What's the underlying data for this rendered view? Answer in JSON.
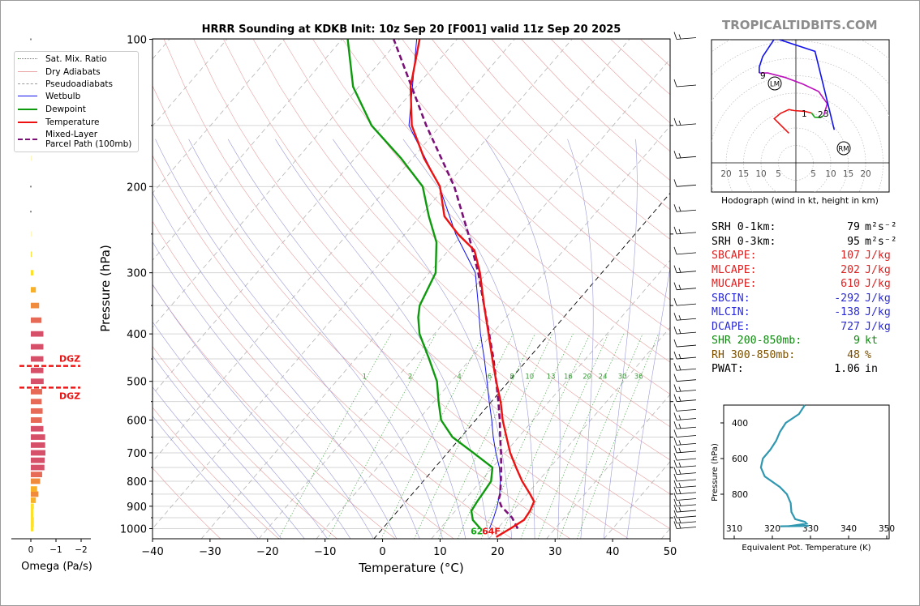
{
  "brand": "TROPICALTIDBITS.COM",
  "chart_data": {
    "type": "skew-t",
    "title": "HRRR Sounding at KDKB Init: 10z Sep 20 [F001] valid 11z Sep 20 2025",
    "xlabel": "Temperature (°C)",
    "ylabel": "Pressure (hPa)",
    "xlim": [
      -40,
      50
    ],
    "x_ticks": [
      -40,
      -30,
      -20,
      -10,
      0,
      10,
      20,
      30,
      40,
      50
    ],
    "x_tick_labels": [
      "−40",
      "−30",
      "−20",
      "−10",
      "0",
      "10",
      "20",
      "30",
      "40",
      "50"
    ],
    "p_ticks": [
      100,
      200,
      300,
      400,
      500,
      600,
      700,
      800,
      900,
      1000
    ],
    "temperature": [
      [
        1040,
        21
      ],
      [
        1000,
        22.2
      ],
      [
        960,
        23.3
      ],
      [
        920,
        23
      ],
      [
        880,
        22.3
      ],
      [
        850,
        20.5
      ],
      [
        800,
        17.2
      ],
      [
        750,
        14.1
      ],
      [
        700,
        10.9
      ],
      [
        650,
        7.9
      ],
      [
        600,
        4.7
      ],
      [
        550,
        1.6
      ],
      [
        500,
        -2.2
      ],
      [
        450,
        -6.2
      ],
      [
        400,
        -10.6
      ],
      [
        350,
        -15.6
      ],
      [
        300,
        -21.2
      ],
      [
        270,
        -25.5
      ],
      [
        250,
        -30.8
      ],
      [
        230,
        -35.8
      ],
      [
        200,
        -41
      ],
      [
        175,
        -48
      ],
      [
        150,
        -55
      ],
      [
        125,
        -61
      ],
      [
        100,
        -66.5
      ]
    ],
    "dewpoint": [
      [
        1000,
        17
      ],
      [
        960,
        14.4
      ],
      [
        920,
        12.8
      ],
      [
        880,
        12.4
      ],
      [
        850,
        12.2
      ],
      [
        800,
        11.8
      ],
      [
        750,
        10
      ],
      [
        700,
        4.5
      ],
      [
        650,
        -1.5
      ],
      [
        600,
        -6
      ],
      [
        550,
        -9.2
      ],
      [
        500,
        -12.5
      ],
      [
        450,
        -17.2
      ],
      [
        400,
        -22.6
      ],
      [
        370,
        -25.3
      ],
      [
        350,
        -26.8
      ],
      [
        300,
        -28.9
      ],
      [
        260,
        -33.3
      ],
      [
        230,
        -38.5
      ],
      [
        200,
        -44
      ],
      [
        175,
        -52
      ],
      [
        150,
        -62
      ],
      [
        125,
        -71
      ],
      [
        100,
        -79
      ]
    ],
    "wetbulb": [
      [
        1000,
        18.6
      ],
      [
        950,
        17.7
      ],
      [
        900,
        16.6
      ],
      [
        850,
        15.2
      ],
      [
        800,
        13.4
      ],
      [
        750,
        11.2
      ],
      [
        700,
        8.4
      ],
      [
        650,
        5.6
      ],
      [
        600,
        2.8
      ],
      [
        550,
        -0.4
      ],
      [
        500,
        -3.8
      ],
      [
        450,
        -7.6
      ],
      [
        400,
        -12
      ],
      [
        350,
        -16.6
      ],
      [
        300,
        -22
      ],
      [
        250,
        -31.2
      ],
      [
        200,
        -41.1
      ],
      [
        150,
        -55.5
      ],
      [
        100,
        -67
      ]
    ],
    "parcel_path": [
      [
        1000,
        23.5
      ],
      [
        950,
        20.9
      ],
      [
        900,
        17.3
      ],
      [
        870,
        15.8
      ],
      [
        850,
        15.3
      ],
      [
        800,
        13.5
      ],
      [
        750,
        11.5
      ],
      [
        700,
        9.3
      ],
      [
        650,
        6.8
      ],
      [
        600,
        4.2
      ],
      [
        550,
        1.2
      ],
      [
        500,
        -2.2
      ],
      [
        450,
        -6
      ],
      [
        400,
        -10.5
      ],
      [
        350,
        -15.6
      ],
      [
        300,
        -21.5
      ],
      [
        250,
        -29
      ],
      [
        200,
        -38.5
      ],
      [
        150,
        -52.5
      ],
      [
        100,
        -71
      ]
    ],
    "surface_labels": {
      "dewpoint": "62",
      "temperature": "64F"
    },
    "mixing_ratio_labels": [
      "1",
      "2",
      "4",
      "6",
      "8",
      "10",
      "13",
      "16",
      "20",
      "24",
      "30",
      "36"
    ],
    "legend": [
      "Sat. Mix. Ratio",
      "Dry Adiabats",
      "Pseudoadiabats",
      "Wetbulb",
      "Dewpoint",
      "Temperature",
      "Mixed-Layer\nParcel Path (100mb)"
    ],
    "omega": {
      "xlabel": "Omega (Pa/s)",
      "x_tick_labels": [
        "0",
        "−1",
        "−2"
      ],
      "dgz_label": "DGZ",
      "dgz_top_hpa": 465,
      "dgz_bottom_hpa": 515,
      "values": [
        [
          1000,
          -0.1
        ],
        [
          980,
          -0.12
        ],
        [
          960,
          -0.12
        ],
        [
          940,
          -0.1
        ],
        [
          920,
          -0.1
        ],
        [
          900,
          -0.12
        ],
        [
          875,
          -0.2
        ],
        [
          850,
          -0.3
        ],
        [
          830,
          -0.25
        ],
        [
          800,
          -0.37
        ],
        [
          775,
          -0.45
        ],
        [
          750,
          -0.54
        ],
        [
          725,
          -0.55
        ],
        [
          700,
          -0.58
        ],
        [
          675,
          -0.57
        ],
        [
          650,
          -0.57
        ],
        [
          625,
          -0.5
        ],
        [
          600,
          -0.44
        ],
        [
          575,
          -0.47
        ],
        [
          550,
          -0.43
        ],
        [
          525,
          -0.45
        ],
        [
          500,
          -0.51
        ],
        [
          475,
          -0.5
        ],
        [
          450,
          -0.5
        ],
        [
          425,
          -0.5
        ],
        [
          400,
          -0.5
        ],
        [
          375,
          -0.42
        ],
        [
          350,
          -0.33
        ],
        [
          325,
          -0.2
        ],
        [
          300,
          -0.1
        ],
        [
          275,
          -0.03
        ],
        [
          250,
          -0.01
        ],
        [
          225,
          0
        ],
        [
          200,
          0
        ],
        [
          175,
          -0.01
        ],
        [
          150,
          0
        ],
        [
          125,
          -0.01
        ],
        [
          100,
          0
        ]
      ]
    },
    "hodograph": {
      "caption": "Hodograph (wind in kt, height in km)",
      "x_tick_labels": [
        "20",
        "15",
        "10",
        "5",
        "5",
        "10",
        "15",
        "20"
      ],
      "height_labels": [
        "1",
        "2",
        "3",
        "9"
      ],
      "storm_motion_labels": [
        "LM",
        "RM"
      ]
    },
    "theta_e": {
      "ylabel": "Pressure (hPa)",
      "xlabel": "Equivalent Pot. Temperature (K)",
      "x_ticks": [
        310,
        320,
        330,
        340,
        350
      ],
      "y_ticks": [
        400,
        600,
        800
      ],
      "profile": [
        [
          980,
          324.2
        ],
        [
          965,
          329
        ],
        [
          955,
          328.5
        ],
        [
          940,
          326
        ],
        [
          900,
          325
        ],
        [
          850,
          324.8
        ],
        [
          800,
          323.8
        ],
        [
          760,
          322
        ],
        [
          700,
          318
        ],
        [
          650,
          317
        ],
        [
          600,
          317.5
        ],
        [
          550,
          319.5
        ],
        [
          500,
          321
        ],
        [
          450,
          322
        ],
        [
          400,
          323.5
        ],
        [
          350,
          327
        ],
        [
          300,
          328.5
        ]
      ]
    }
  },
  "stats": [
    {
      "label": "SRH 0-1km:",
      "value": "79",
      "unit": "m²s⁻²",
      "color": "#000000"
    },
    {
      "label": "SRH 0-3km:",
      "value": "95",
      "unit": "m²s⁻²",
      "color": "#000000"
    },
    {
      "label": "SBCAPE:",
      "value": "107",
      "unit": "J/kg",
      "color": "#dd2222"
    },
    {
      "label": "MLCAPE:",
      "value": "202",
      "unit": "J/kg",
      "color": "#dd2222"
    },
    {
      "label": "MUCAPE:",
      "value": "610",
      "unit": "J/kg",
      "color": "#dd2222"
    },
    {
      "label": "SBCIN:",
      "value": "-292",
      "unit": "J/kg",
      "color": "#2b2bd6"
    },
    {
      "label": "MLCIN:",
      "value": "-138",
      "unit": "J/kg",
      "color": "#2b2bd6"
    },
    {
      "label": "DCAPE:",
      "value": "727",
      "unit": "J/kg",
      "color": "#2b2bd6"
    },
    {
      "label": "SHR 200-850mb:",
      "value": "9",
      "unit": "kt",
      "color": "#118811"
    },
    {
      "label": "RH 300-850mb:",
      "value": "48",
      "unit": "%",
      "color": "#7a4f00"
    },
    {
      "label": "PWAT:",
      "value": "1.06",
      "unit": "in",
      "color": "#000000"
    }
  ]
}
